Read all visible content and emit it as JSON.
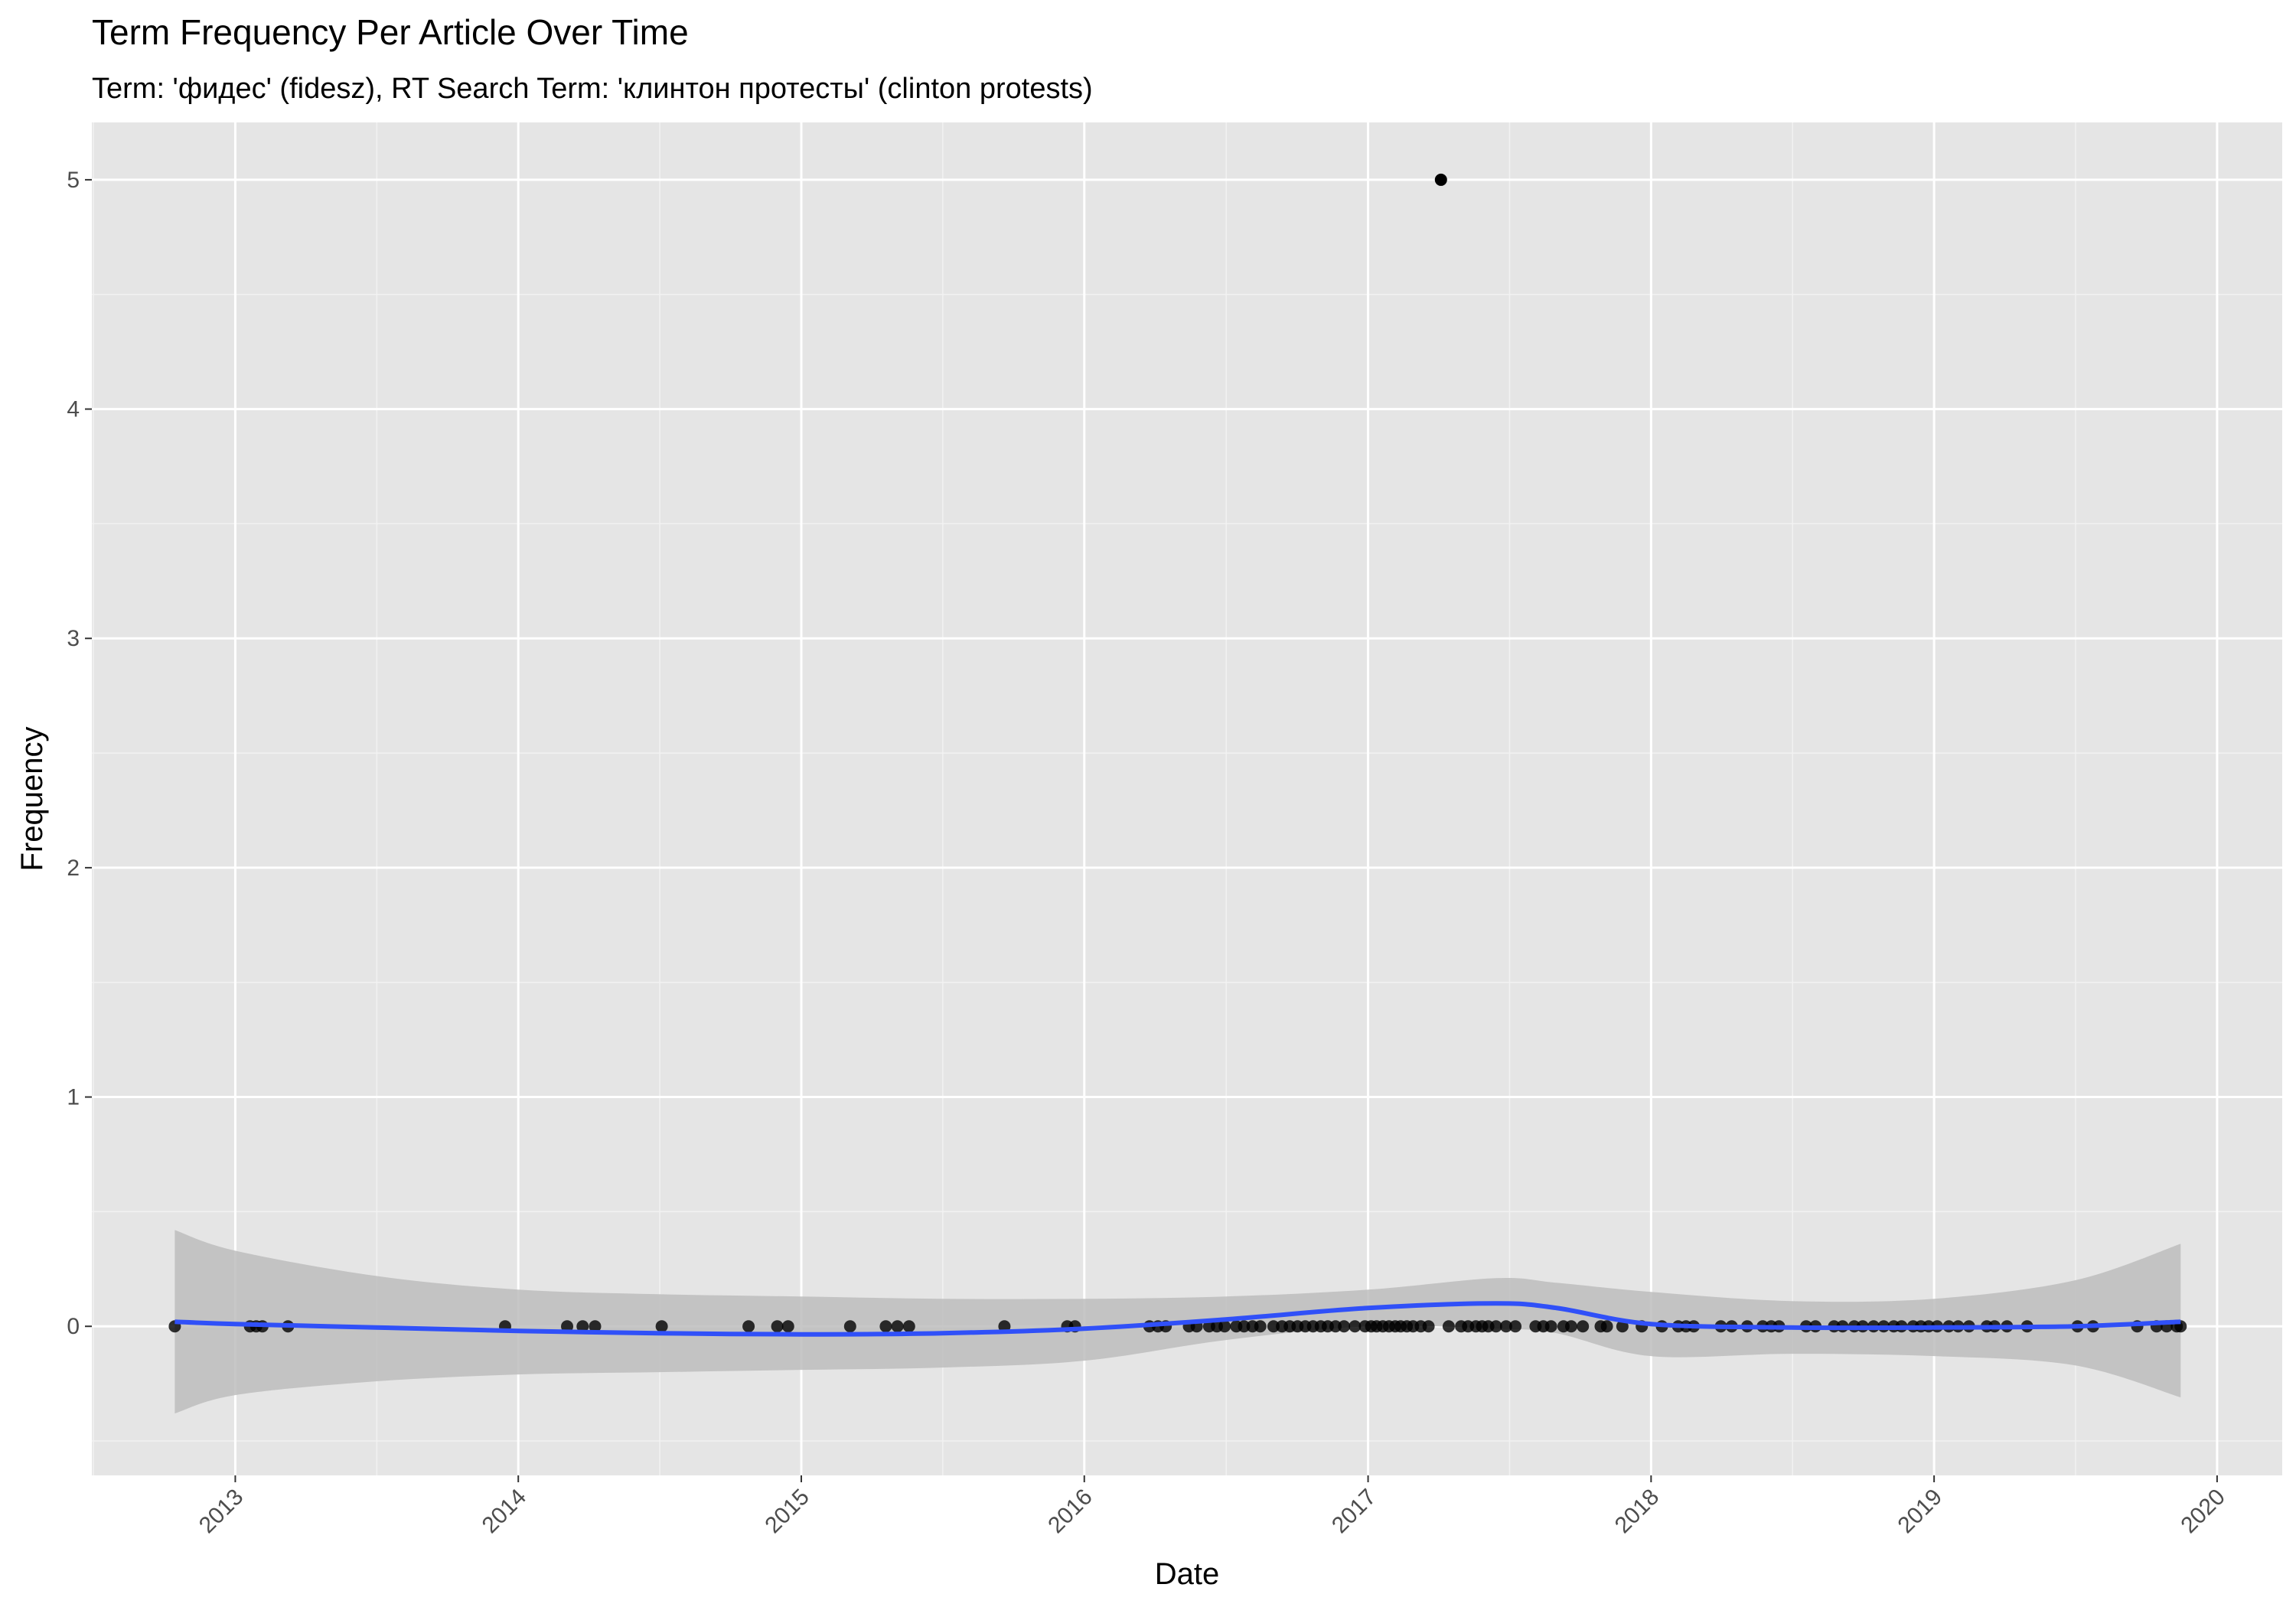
{
  "chart_data": {
    "type": "scatter",
    "title": "Term Frequency Per Article Over Time",
    "subtitle": "Term: 'фидес' (fidesz), RT Search Term: 'клинтон протесты' (clinton protests)",
    "xlabel": "Date",
    "ylabel": "Frequency",
    "x_scale": "date",
    "xlim": [
      "2012-06-30",
      "2020-03-25"
    ],
    "ylim": [
      -0.65,
      5.25
    ],
    "x_ticks": [
      "2013",
      "2014",
      "2015",
      "2016",
      "2017",
      "2018",
      "2019",
      "2020"
    ],
    "y_ticks": [
      "0",
      "1",
      "2",
      "3",
      "4",
      "5"
    ],
    "grid": true,
    "legend": "none",
    "colors": {
      "panel": "#e5e5e5",
      "grid": "#ffffff",
      "points": "#000000",
      "smooth_line": "#3050f8",
      "ribbon": "#bdbdbd"
    },
    "series": [
      {
        "type": "scatter",
        "points": [
          {
            "x": "2012-10-15",
            "y": 0
          },
          {
            "x": "2013-01-20",
            "y": 0
          },
          {
            "x": "2013-01-28",
            "y": 0
          },
          {
            "x": "2013-02-05",
            "y": 0
          },
          {
            "x": "2013-03-10",
            "y": 0
          },
          {
            "x": "2013-12-15",
            "y": 0
          },
          {
            "x": "2014-03-05",
            "y": 0
          },
          {
            "x": "2014-03-25",
            "y": 0
          },
          {
            "x": "2014-04-10",
            "y": 0
          },
          {
            "x": "2014-07-05",
            "y": 0
          },
          {
            "x": "2014-10-25",
            "y": 0
          },
          {
            "x": "2014-12-01",
            "y": 0
          },
          {
            "x": "2014-12-15",
            "y": 0
          },
          {
            "x": "2015-03-05",
            "y": 0
          },
          {
            "x": "2015-04-20",
            "y": 0
          },
          {
            "x": "2015-05-05",
            "y": 0
          },
          {
            "x": "2015-05-20",
            "y": 0
          },
          {
            "x": "2015-09-20",
            "y": 0
          },
          {
            "x": "2015-12-10",
            "y": 0
          },
          {
            "x": "2015-12-20",
            "y": 0
          },
          {
            "x": "2016-03-25",
            "y": 0
          },
          {
            "x": "2016-04-05",
            "y": 0
          },
          {
            "x": "2016-04-15",
            "y": 0
          },
          {
            "x": "2016-05-15",
            "y": 0
          },
          {
            "x": "2016-05-25",
            "y": 0
          },
          {
            "x": "2016-06-10",
            "y": 0
          },
          {
            "x": "2016-06-20",
            "y": 0
          },
          {
            "x": "2016-06-30",
            "y": 0
          },
          {
            "x": "2016-07-15",
            "y": 0
          },
          {
            "x": "2016-07-25",
            "y": 0
          },
          {
            "x": "2016-08-05",
            "y": 0
          },
          {
            "x": "2016-08-15",
            "y": 0
          },
          {
            "x": "2016-09-01",
            "y": 0
          },
          {
            "x": "2016-09-12",
            "y": 0
          },
          {
            "x": "2016-09-22",
            "y": 0
          },
          {
            "x": "2016-10-02",
            "y": 0
          },
          {
            "x": "2016-10-12",
            "y": 0
          },
          {
            "x": "2016-10-22",
            "y": 0
          },
          {
            "x": "2016-11-01",
            "y": 0
          },
          {
            "x": "2016-11-10",
            "y": 0
          },
          {
            "x": "2016-11-20",
            "y": 0
          },
          {
            "x": "2016-12-01",
            "y": 0
          },
          {
            "x": "2016-12-15",
            "y": 0
          },
          {
            "x": "2016-12-28",
            "y": 0
          },
          {
            "x": "2017-01-05",
            "y": 0
          },
          {
            "x": "2017-01-12",
            "y": 0
          },
          {
            "x": "2017-01-20",
            "y": 0
          },
          {
            "x": "2017-01-28",
            "y": 0
          },
          {
            "x": "2017-02-05",
            "y": 0
          },
          {
            "x": "2017-02-12",
            "y": 0
          },
          {
            "x": "2017-02-20",
            "y": 0
          },
          {
            "x": "2017-02-28",
            "y": 0
          },
          {
            "x": "2017-03-10",
            "y": 0
          },
          {
            "x": "2017-03-20",
            "y": 0
          },
          {
            "x": "2017-04-05",
            "y": 5
          },
          {
            "x": "2017-04-15",
            "y": 0
          },
          {
            "x": "2017-05-01",
            "y": 0
          },
          {
            "x": "2017-05-10",
            "y": 0
          },
          {
            "x": "2017-05-20",
            "y": 0
          },
          {
            "x": "2017-05-28",
            "y": 0
          },
          {
            "x": "2017-06-05",
            "y": 0
          },
          {
            "x": "2017-06-15",
            "y": 0
          },
          {
            "x": "2017-06-28",
            "y": 0
          },
          {
            "x": "2017-07-10",
            "y": 0
          },
          {
            "x": "2017-08-05",
            "y": 0
          },
          {
            "x": "2017-08-15",
            "y": 0
          },
          {
            "x": "2017-08-25",
            "y": 0
          },
          {
            "x": "2017-09-10",
            "y": 0
          },
          {
            "x": "2017-09-20",
            "y": 0
          },
          {
            "x": "2017-10-05",
            "y": 0
          },
          {
            "x": "2017-10-28",
            "y": 0
          },
          {
            "x": "2017-11-05",
            "y": 0
          },
          {
            "x": "2017-11-25",
            "y": 0
          },
          {
            "x": "2017-12-20",
            "y": 0
          },
          {
            "x": "2018-01-15",
            "y": 0
          },
          {
            "x": "2018-02-05",
            "y": 0
          },
          {
            "x": "2018-02-15",
            "y": 0
          },
          {
            "x": "2018-02-25",
            "y": 0
          },
          {
            "x": "2018-04-01",
            "y": 0
          },
          {
            "x": "2018-04-15",
            "y": 0
          },
          {
            "x": "2018-05-05",
            "y": 0
          },
          {
            "x": "2018-05-25",
            "y": 0
          },
          {
            "x": "2018-06-05",
            "y": 0
          },
          {
            "x": "2018-06-15",
            "y": 0
          },
          {
            "x": "2018-07-20",
            "y": 0
          },
          {
            "x": "2018-08-01",
            "y": 0
          },
          {
            "x": "2018-08-25",
            "y": 0
          },
          {
            "x": "2018-09-05",
            "y": 0
          },
          {
            "x": "2018-09-20",
            "y": 0
          },
          {
            "x": "2018-10-01",
            "y": 0
          },
          {
            "x": "2018-10-15",
            "y": 0
          },
          {
            "x": "2018-10-28",
            "y": 0
          },
          {
            "x": "2018-11-10",
            "y": 0
          },
          {
            "x": "2018-11-20",
            "y": 0
          },
          {
            "x": "2018-12-05",
            "y": 0
          },
          {
            "x": "2018-12-15",
            "y": 0
          },
          {
            "x": "2018-12-25",
            "y": 0
          },
          {
            "x": "2019-01-05",
            "y": 0
          },
          {
            "x": "2019-01-20",
            "y": 0
          },
          {
            "x": "2019-02-01",
            "y": 0
          },
          {
            "x": "2019-02-15",
            "y": 0
          },
          {
            "x": "2019-03-10",
            "y": 0
          },
          {
            "x": "2019-03-20",
            "y": 0
          },
          {
            "x": "2019-04-05",
            "y": 0
          },
          {
            "x": "2019-05-01",
            "y": 0
          },
          {
            "x": "2019-07-05",
            "y": 0
          },
          {
            "x": "2019-07-25",
            "y": 0
          },
          {
            "x": "2019-09-20",
            "y": 0
          },
          {
            "x": "2019-10-15",
            "y": 0
          },
          {
            "x": "2019-10-28",
            "y": 0
          },
          {
            "x": "2019-11-10",
            "y": 0
          },
          {
            "x": "2019-11-15",
            "y": 0
          }
        ]
      },
      {
        "type": "smooth",
        "points": [
          {
            "x": "2012-10-15",
            "y": 0.02,
            "ymin": -0.38,
            "ymax": 0.42
          },
          {
            "x": "2013-01-01",
            "y": 0.01,
            "ymin": -0.3,
            "ymax": 0.33
          },
          {
            "x": "2013-07-01",
            "y": -0.005,
            "ymin": -0.24,
            "ymax": 0.22
          },
          {
            "x": "2014-01-01",
            "y": -0.02,
            "ymin": -0.21,
            "ymax": 0.16
          },
          {
            "x": "2014-07-01",
            "y": -0.03,
            "ymin": -0.2,
            "ymax": 0.14
          },
          {
            "x": "2015-01-01",
            "y": -0.035,
            "ymin": -0.19,
            "ymax": 0.13
          },
          {
            "x": "2015-07-01",
            "y": -0.03,
            "ymin": -0.18,
            "ymax": 0.12
          },
          {
            "x": "2016-01-01",
            "y": -0.01,
            "ymin": -0.15,
            "ymax": 0.12
          },
          {
            "x": "2016-07-01",
            "y": 0.03,
            "ymin": -0.06,
            "ymax": 0.13
          },
          {
            "x": "2017-01-01",
            "y": 0.08,
            "ymin": 0.0,
            "ymax": 0.16
          },
          {
            "x": "2017-06-15",
            "y": 0.1,
            "ymin": -0.01,
            "ymax": 0.21
          },
          {
            "x": "2017-09-01",
            "y": 0.08,
            "ymin": -0.03,
            "ymax": 0.19
          },
          {
            "x": "2018-01-01",
            "y": 0.01,
            "ymin": -0.13,
            "ymax": 0.15
          },
          {
            "x": "2018-07-01",
            "y": -0.005,
            "ymin": -0.12,
            "ymax": 0.11
          },
          {
            "x": "2019-01-01",
            "y": -0.005,
            "ymin": -0.13,
            "ymax": 0.12
          },
          {
            "x": "2019-07-01",
            "y": 0.0,
            "ymin": -0.17,
            "ymax": 0.2
          },
          {
            "x": "2019-11-15",
            "y": 0.02,
            "ymin": -0.31,
            "ymax": 0.36
          }
        ]
      }
    ]
  }
}
